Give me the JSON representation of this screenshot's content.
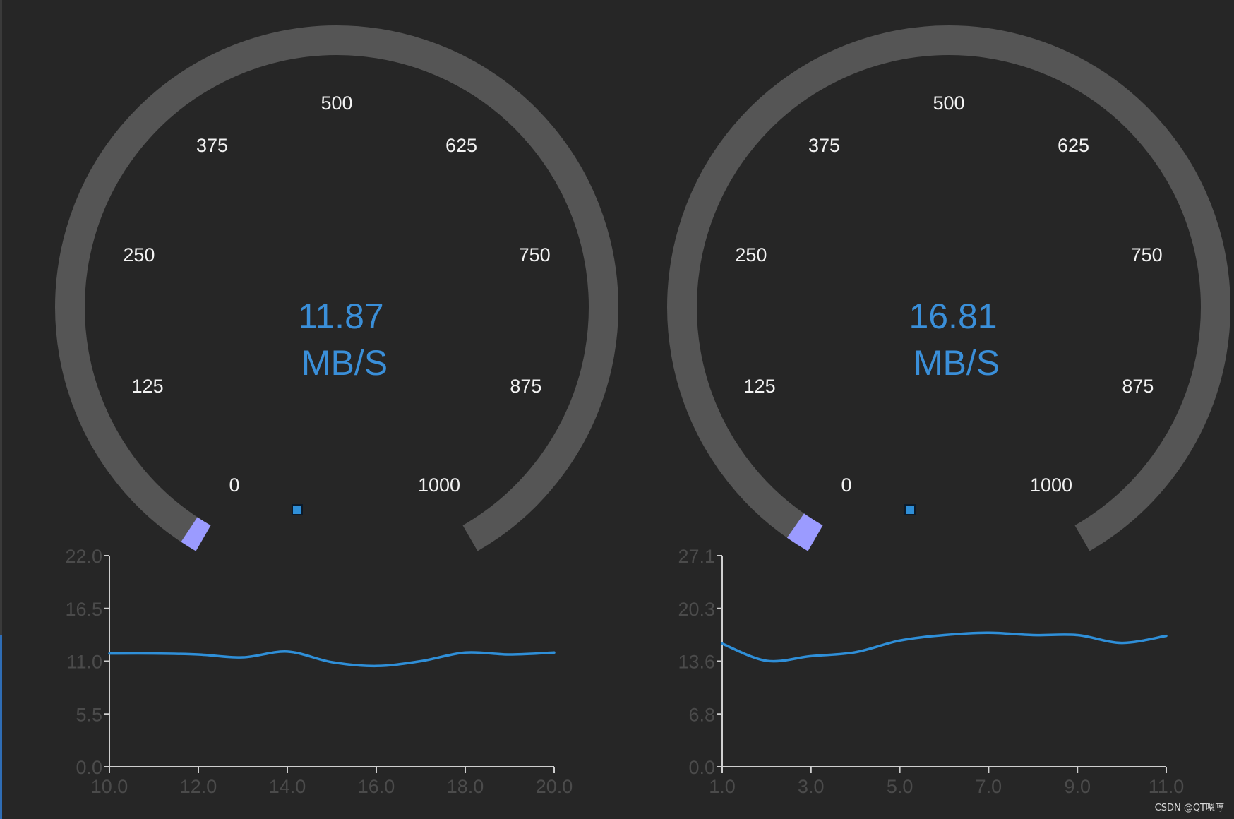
{
  "colors": {
    "background": "#262626",
    "gauge_track": "#555555",
    "gauge_fill": "#9b9bff",
    "value_text": "#3a8fd9",
    "tick_label": "#f2f2f2",
    "chart_axis": "#cfcfcf",
    "chart_tick_text": "#4b4b4b",
    "series_line": "#2f8fd8",
    "legend_marker": "#2f8fd8"
  },
  "gauges": [
    {
      "value": "11.87",
      "unit": "MB/S",
      "min": 0,
      "max": 1000,
      "level": 11.87,
      "ticks": [
        "0",
        "125",
        "250",
        "375",
        "500",
        "625",
        "750",
        "875",
        "1000"
      ]
    },
    {
      "value": "16.81",
      "unit": "MB/S",
      "min": 0,
      "max": 1000,
      "level": 16.81,
      "ticks": [
        "0",
        "125",
        "250",
        "375",
        "500",
        "625",
        "750",
        "875",
        "1000"
      ]
    }
  ],
  "chart_data": [
    {
      "type": "line",
      "legend": {
        "marker": "square",
        "placement": "top-center",
        "label": ""
      },
      "xlim": [
        10,
        20
      ],
      "ylim": [
        0,
        22
      ],
      "xticks": [
        "10.0",
        "12.0",
        "14.0",
        "16.0",
        "18.0",
        "20.0"
      ],
      "yticks": [
        "0.0",
        "5.5",
        "11.0",
        "16.5",
        "22.0"
      ],
      "series": [
        {
          "x": [
            10,
            11,
            12,
            13,
            14,
            15,
            16,
            17,
            18,
            19,
            20
          ],
          "y": [
            11.8,
            11.8,
            11.7,
            11.4,
            12.0,
            10.9,
            10.5,
            11.0,
            11.9,
            11.7,
            11.9
          ]
        }
      ]
    },
    {
      "type": "line",
      "legend": {
        "marker": "square",
        "placement": "top-center",
        "label": ""
      },
      "xlim": [
        1,
        11
      ],
      "ylim": [
        0,
        27.1
      ],
      "xticks": [
        "1.0",
        "3.0",
        "5.0",
        "7.0",
        "9.0",
        "11.0"
      ],
      "yticks": [
        "0.0",
        "6.8",
        "13.6",
        "20.3",
        "27.1"
      ],
      "series": [
        {
          "x": [
            1,
            2,
            3,
            4,
            5,
            6,
            7,
            8,
            9,
            10,
            11
          ],
          "y": [
            15.8,
            13.6,
            14.2,
            14.7,
            16.2,
            16.9,
            17.2,
            16.9,
            16.9,
            15.9,
            16.8
          ]
        }
      ]
    }
  ],
  "watermark": "CSDN @QT嗯哼"
}
